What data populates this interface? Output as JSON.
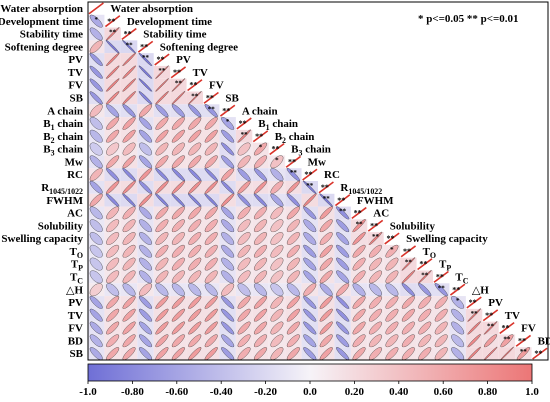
{
  "legend_note": "* p<=0.05  ** p<=0.01",
  "colorbar": {
    "min": -1.0,
    "max": 1.0,
    "ticks": [
      "-1.0",
      "-0.80",
      "-0.60",
      "-0.40",
      "-0.20",
      "0.0",
      "0.20",
      "0.40",
      "0.60",
      "0.80",
      "1.0"
    ],
    "colors": {
      "negative": "#6f6fd6",
      "neutral": "#f6f3f8",
      "positive": "#ec7676"
    }
  },
  "chart_data": {
    "type": "heatmap",
    "subtype": "lower-triangular correlation matrix (ellipse glyphs)",
    "variables": [
      "Water absorption",
      "Development time",
      "Stability time",
      "Softening degree",
      "PV",
      "TV",
      "FV",
      "SB",
      "A chain",
      "B1 chain",
      "B2 chain",
      "B3 chain",
      "Mw",
      "RC",
      "R1045/1022",
      "FWHM",
      "AC",
      "Solubility",
      "Swelling capacity",
      "TO",
      "TP",
      "TC",
      "△H",
      "PV",
      "TV",
      "FV",
      "BD",
      "SB"
    ],
    "labels_rich": [
      [
        "Water absorption"
      ],
      [
        "Development time"
      ],
      [
        "Stability time"
      ],
      [
        "Softening degree"
      ],
      [
        "PV"
      ],
      [
        "TV"
      ],
      [
        "FV"
      ],
      [
        "SB"
      ],
      [
        "A chain"
      ],
      [
        "B",
        "1",
        " chain"
      ],
      [
        "B",
        "2",
        " chain"
      ],
      [
        "B",
        "3",
        " chain"
      ],
      [
        "Mw"
      ],
      [
        "RC"
      ],
      [
        "R",
        "1045/1022"
      ],
      [
        "FWHM"
      ],
      [
        "AC"
      ],
      [
        "Solubility"
      ],
      [
        "Swelling capacity"
      ],
      [
        "T",
        "O"
      ],
      [
        "T",
        "P"
      ],
      [
        "T",
        "C"
      ],
      [
        "△H"
      ],
      [
        "PV"
      ],
      [
        "TV"
      ],
      [
        "FV"
      ],
      [
        "BD"
      ],
      [
        "SB"
      ]
    ],
    "value_range": [
      -1,
      1
    ],
    "significance": {
      "*": "p<=0.05",
      "**": "p<=0.01"
    },
    "rows": [
      [
        1.0
      ],
      [
        -0.55,
        1.0
      ],
      [
        -0.5,
        0.93,
        1.0
      ],
      [
        0.5,
        -0.9,
        -0.93,
        1.0
      ],
      [
        -0.7,
        0.9,
        0.92,
        -0.9,
        1.0
      ],
      [
        -0.7,
        0.9,
        0.9,
        -0.9,
        0.98,
        1.0
      ],
      [
        -0.7,
        0.9,
        0.9,
        -0.9,
        0.97,
        0.98,
        1.0
      ],
      [
        -0.7,
        0.85,
        0.88,
        -0.85,
        0.92,
        0.95,
        0.98,
        1.0
      ],
      [
        0.45,
        -0.6,
        -0.7,
        0.6,
        -0.65,
        -0.65,
        -0.7,
        -0.7,
        1.0
      ],
      [
        -0.4,
        0.6,
        0.65,
        -0.6,
        0.6,
        0.6,
        0.6,
        0.6,
        -0.6,
        1.0
      ],
      [
        -0.45,
        0.6,
        0.65,
        -0.6,
        0.65,
        0.65,
        0.65,
        0.65,
        -0.65,
        0.9,
        1.0
      ],
      [
        -0.3,
        0.35,
        0.45,
        -0.4,
        0.5,
        0.5,
        0.5,
        0.5,
        -0.75,
        0.4,
        0.6,
        1.0
      ],
      [
        -0.5,
        0.6,
        0.65,
        -0.6,
        0.6,
        0.6,
        0.6,
        0.6,
        -0.65,
        0.5,
        0.55,
        0.4,
        1.0
      ],
      [
        0.5,
        -0.75,
        -0.8,
        0.75,
        -0.8,
        -0.8,
        -0.8,
        -0.8,
        0.65,
        -0.65,
        -0.7,
        -0.5,
        -0.75,
        1.0
      ],
      [
        -0.6,
        0.75,
        0.8,
        -0.75,
        0.8,
        0.8,
        0.8,
        0.8,
        -0.8,
        0.7,
        0.75,
        0.55,
        0.75,
        -0.9,
        1.0
      ],
      [
        0.6,
        -0.8,
        -0.85,
        0.8,
        -0.85,
        -0.85,
        -0.85,
        -0.85,
        0.8,
        -0.75,
        -0.8,
        -0.6,
        -0.75,
        0.85,
        -0.9,
        1.0
      ],
      [
        -0.45,
        0.5,
        0.55,
        -0.55,
        0.6,
        0.6,
        0.6,
        0.6,
        -0.6,
        0.55,
        0.55,
        0.45,
        0.6,
        -0.7,
        0.7,
        -0.75,
        1.0
      ],
      [
        -0.4,
        0.45,
        0.5,
        -0.5,
        0.55,
        0.55,
        0.55,
        0.55,
        -0.55,
        0.45,
        0.5,
        0.4,
        0.5,
        -0.55,
        0.6,
        -0.65,
        0.8,
        1.0
      ],
      [
        -0.4,
        0.45,
        0.5,
        -0.5,
        0.5,
        0.5,
        0.55,
        0.55,
        -0.5,
        0.45,
        0.5,
        0.4,
        0.5,
        -0.55,
        0.55,
        -0.6,
        0.75,
        0.9,
        1.0
      ],
      [
        -0.35,
        0.45,
        0.5,
        -0.5,
        0.55,
        0.55,
        0.55,
        0.55,
        -0.55,
        0.5,
        0.55,
        0.45,
        0.55,
        -0.65,
        0.65,
        -0.65,
        0.6,
        0.55,
        0.55,
        1.0
      ],
      [
        -0.35,
        0.45,
        0.5,
        -0.5,
        0.5,
        0.55,
        0.55,
        0.55,
        -0.5,
        0.45,
        0.5,
        0.4,
        0.5,
        -0.6,
        0.6,
        -0.65,
        0.55,
        0.5,
        0.5,
        0.95,
        1.0
      ],
      [
        -0.35,
        0.45,
        0.5,
        -0.5,
        0.5,
        0.5,
        0.5,
        0.5,
        -0.5,
        0.45,
        0.5,
        0.4,
        0.5,
        -0.6,
        0.6,
        -0.6,
        0.55,
        0.5,
        0.5,
        0.9,
        0.95,
        1.0
      ],
      [
        0.3,
        -0.4,
        -0.45,
        0.45,
        -0.45,
        -0.45,
        -0.45,
        -0.45,
        0.45,
        -0.4,
        -0.45,
        -0.35,
        -0.45,
        0.55,
        -0.55,
        0.6,
        -0.5,
        -0.45,
        -0.45,
        -0.75,
        -0.7,
        -0.7,
        1.0
      ],
      [
        -0.6,
        0.6,
        0.65,
        -0.65,
        0.7,
        0.7,
        0.7,
        0.7,
        -0.7,
        0.6,
        0.65,
        0.5,
        0.65,
        -0.7,
        0.7,
        -0.75,
        0.6,
        0.55,
        0.55,
        0.6,
        0.55,
        0.55,
        -0.5,
        1.0
      ],
      [
        -0.6,
        0.6,
        0.65,
        -0.65,
        0.7,
        0.7,
        0.7,
        0.7,
        -0.7,
        0.6,
        0.65,
        0.5,
        0.65,
        -0.7,
        0.7,
        -0.75,
        0.6,
        0.55,
        0.55,
        0.6,
        0.55,
        0.55,
        -0.5,
        0.95,
        1.0
      ],
      [
        -0.55,
        0.6,
        0.65,
        -0.6,
        0.7,
        0.7,
        0.7,
        0.7,
        -0.7,
        0.6,
        0.6,
        0.5,
        0.6,
        -0.7,
        0.7,
        -0.7,
        0.6,
        0.55,
        0.55,
        0.55,
        0.55,
        0.5,
        -0.5,
        0.9,
        0.95,
        1.0
      ],
      [
        -0.5,
        0.55,
        0.6,
        -0.6,
        0.65,
        0.6,
        0.6,
        0.6,
        -0.6,
        0.55,
        0.55,
        0.45,
        0.55,
        -0.6,
        0.6,
        -0.65,
        0.55,
        0.5,
        0.5,
        0.55,
        0.5,
        0.5,
        -0.45,
        0.85,
        0.7,
        0.65,
        1.0
      ],
      [
        -0.55,
        0.6,
        0.6,
        -0.6,
        0.65,
        0.65,
        0.7,
        0.7,
        -0.65,
        0.55,
        0.6,
        0.5,
        0.6,
        -0.65,
        0.65,
        -0.7,
        0.6,
        0.55,
        0.55,
        0.55,
        0.55,
        0.5,
        -0.5,
        0.9,
        0.95,
        0.98,
        0.7,
        1.0
      ]
    ]
  }
}
